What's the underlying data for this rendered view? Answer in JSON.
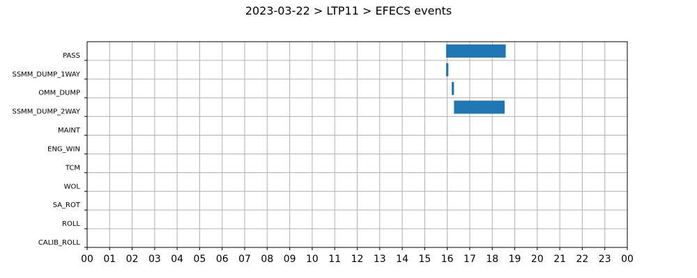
{
  "chart_data": {
    "type": "bar",
    "orientation": "horizontal",
    "title": "2023-03-22 > LTP11 > EFECS events",
    "xlabel": "",
    "ylabel": "",
    "xlim": [
      0,
      24
    ],
    "x_tick_labels": [
      "00",
      "01",
      "02",
      "03",
      "04",
      "05",
      "06",
      "07",
      "08",
      "09",
      "10",
      "11",
      "12",
      "13",
      "14",
      "15",
      "16",
      "17",
      "18",
      "19",
      "20",
      "21",
      "22",
      "23",
      "00"
    ],
    "grid": true,
    "color": "#1f77b4",
    "categories": [
      "PASS",
      "SSMM_DUMP_1WAY",
      "OMM_DUMP",
      "SSMM_DUMP_2WAY",
      "MAINT",
      "ENG_WIN",
      "TCM",
      "WOL",
      "SA_ROT",
      "ROLL",
      "CALIB_ROLL"
    ],
    "events": [
      {
        "category": "PASS",
        "start": 15.95,
        "end": 18.6
      },
      {
        "category": "SSMM_DUMP_1WAY",
        "start": 15.95,
        "end": 16.05
      },
      {
        "category": "OMM_DUMP",
        "start": 16.2,
        "end": 16.3
      },
      {
        "category": "SSMM_DUMP_2WAY",
        "start": 16.3,
        "end": 18.55
      }
    ]
  }
}
